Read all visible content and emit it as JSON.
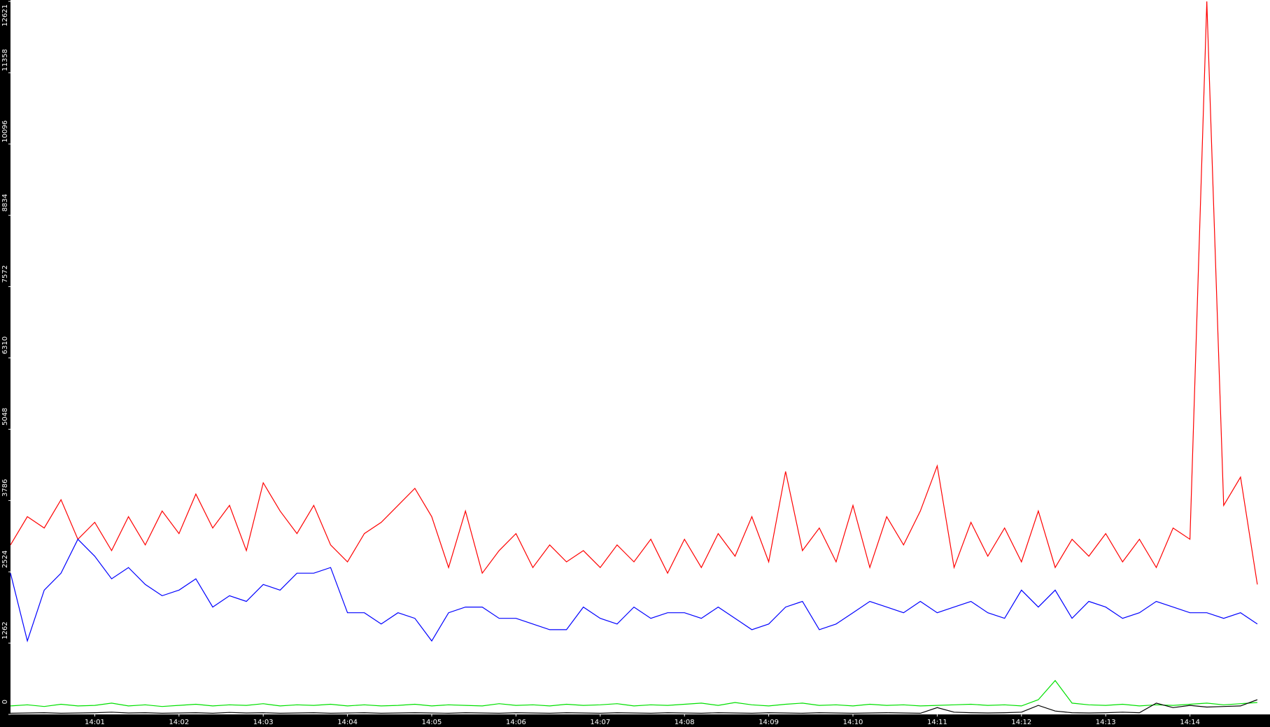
{
  "chart_data": {
    "type": "line",
    "x": [
      840,
      840.2,
      840.4,
      840.6,
      840.8,
      841,
      841.2,
      841.4,
      841.6,
      841.8,
      842,
      842.2,
      842.4,
      842.6,
      842.8,
      843,
      843.2,
      843.4,
      843.6,
      843.8,
      844,
      844.2,
      844.4,
      844.6,
      844.8,
      845,
      845.2,
      845.4,
      845.6,
      845.8,
      846,
      846.2,
      846.4,
      846.6,
      846.8,
      847,
      847.2,
      847.4,
      847.6,
      847.8,
      848,
      848.2,
      848.4,
      848.6,
      848.8,
      849,
      849.2,
      849.4,
      849.6,
      849.8,
      850,
      850.2,
      850.4,
      850.6,
      850.8,
      851,
      851.2,
      851.4,
      851.6,
      851.8,
      852,
      852.2,
      852.4,
      852.6,
      852.8,
      853,
      853.2,
      853.4,
      853.6,
      853.8,
      854,
      854.2,
      854.4,
      854.6,
      854.8
    ],
    "series": [
      {
        "color": "#ff0000",
        "values": [
          3000,
          3500,
          3300,
          3800,
          3100,
          3400,
          2900,
          3500,
          3000,
          3600,
          3200,
          3900,
          3300,
          3700,
          2900,
          4100,
          3600,
          3200,
          3700,
          3000,
          2700,
          3200,
          3400,
          3700,
          4000,
          3500,
          2600,
          3600,
          2500,
          2900,
          3200,
          2600,
          3000,
          2700,
          2900,
          2600,
          3000,
          2700,
          3100,
          2500,
          3100,
          2600,
          3200,
          2800,
          3500,
          2700,
          4300,
          2900,
          3300,
          2700,
          3700,
          2600,
          3500,
          3000,
          3600,
          4400,
          2600,
          3400,
          2800,
          3300,
          2700,
          3600,
          2600,
          3100,
          2800,
          3200,
          2700,
          3100,
          2600,
          3300,
          3100,
          12621,
          3700,
          4200,
          2300
        ]
      },
      {
        "color": "#0000ff",
        "values": [
          2500,
          1300,
          2200,
          2500,
          3100,
          2800,
          2400,
          2600,
          2300,
          2100,
          2200,
          2400,
          1900,
          2100,
          2000,
          2300,
          2200,
          2500,
          2500,
          2600,
          1800,
          1800,
          1600,
          1800,
          1700,
          1300,
          1800,
          1900,
          1900,
          1700,
          1700,
          1600,
          1500,
          1500,
          1900,
          1700,
          1600,
          1900,
          1700,
          1800,
          1800,
          1700,
          1900,
          1700,
          1500,
          1600,
          1900,
          2000,
          1500,
          1600,
          1800,
          2000,
          1900,
          1800,
          2000,
          1800,
          1900,
          2000,
          1800,
          1700,
          2200,
          1900,
          2200,
          1700,
          2000,
          1900,
          1700,
          1800,
          2000,
          1900,
          1800,
          1800,
          1700,
          1800,
          1600
        ]
      },
      {
        "color": "#00e000",
        "values": [
          150,
          170,
          140,
          180,
          150,
          160,
          200,
          150,
          170,
          140,
          160,
          180,
          150,
          170,
          160,
          190,
          150,
          170,
          160,
          180,
          150,
          170,
          150,
          160,
          180,
          150,
          170,
          160,
          150,
          190,
          160,
          170,
          150,
          180,
          160,
          170,
          190,
          150,
          170,
          160,
          180,
          200,
          160,
          210,
          170,
          150,
          180,
          200,
          160,
          170,
          150,
          180,
          160,
          170,
          150,
          160,
          170,
          180,
          160,
          170,
          150,
          260,
          600,
          200,
          170,
          160,
          180,
          150,
          170,
          160,
          180,
          200,
          170,
          190,
          210
        ]
      },
      {
        "color": "#000000",
        "values": [
          20,
          25,
          30,
          20,
          25,
          30,
          40,
          25,
          30,
          20,
          25,
          30,
          20,
          35,
          25,
          30,
          20,
          25,
          30,
          20,
          25,
          30,
          20,
          25,
          30,
          25,
          20,
          30,
          25,
          20,
          30,
          25,
          20,
          30,
          25,
          20,
          30,
          25,
          20,
          30,
          25,
          20,
          30,
          25,
          20,
          30,
          25,
          20,
          30,
          25,
          20,
          25,
          30,
          25,
          20,
          120,
          40,
          30,
          25,
          30,
          40,
          160,
          60,
          30,
          25,
          30,
          40,
          30,
          200,
          120,
          160,
          130,
          140,
          150,
          260
        ]
      }
    ],
    "xlim": [
      840,
      854.95
    ],
    "xticks": [
      {
        "value": 841,
        "label": "14:01"
      },
      {
        "value": 842,
        "label": "14:02"
      },
      {
        "value": 843,
        "label": "14:03"
      },
      {
        "value": 844,
        "label": "14:04"
      },
      {
        "value": 845,
        "label": "14:05"
      },
      {
        "value": 846,
        "label": "14:06"
      },
      {
        "value": 847,
        "label": "14:07"
      },
      {
        "value": 848,
        "label": "14:08"
      },
      {
        "value": 849,
        "label": "14:09"
      },
      {
        "value": 850,
        "label": "14:10"
      },
      {
        "value": 851,
        "label": "14:11"
      },
      {
        "value": 852,
        "label": "14:12"
      },
      {
        "value": 853,
        "label": "14:13"
      },
      {
        "value": 854,
        "label": "14:14"
      }
    ],
    "ylim": [
      0,
      12621
    ],
    "yticks": [
      0,
      1262,
      2524,
      3786,
      5048,
      6310,
      7572,
      8834,
      10096,
      11358,
      12621
    ],
    "grid": false
  }
}
